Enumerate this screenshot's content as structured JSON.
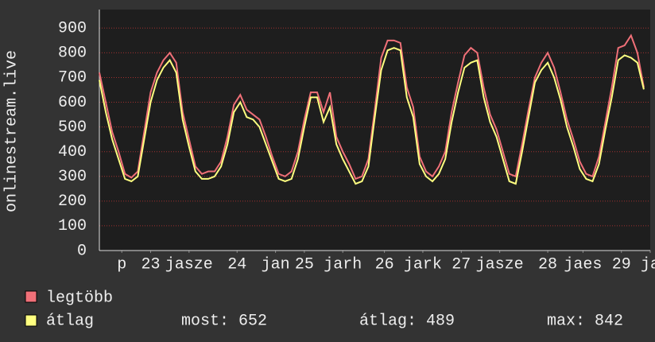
{
  "chart_data": {
    "type": "line",
    "y_label": "onlinestream.live",
    "x": [
      0,
      2,
      4,
      6,
      8,
      10,
      12,
      14,
      16,
      18,
      20,
      22,
      24,
      26,
      28,
      30,
      32,
      34,
      36,
      38,
      40,
      42,
      44,
      46,
      48,
      50,
      52,
      54,
      56,
      58,
      60,
      62,
      64,
      66,
      68,
      70,
      72,
      74,
      76,
      78,
      80,
      82,
      84,
      86,
      88,
      90,
      92,
      94,
      96,
      98,
      100,
      102,
      104,
      106,
      108,
      110,
      112,
      114,
      116,
      118,
      120,
      122,
      124,
      126,
      128,
      130,
      132,
      134,
      136,
      138,
      140,
      142,
      144,
      146,
      148,
      150,
      152,
      154,
      156,
      158,
      160,
      162,
      164,
      166,
      168,
      170
    ],
    "xlim": [
      0,
      172
    ],
    "xticks": [
      {
        "value": 7,
        "label": "p"
      },
      {
        "value": 16,
        "label": "23"
      },
      {
        "value": 28,
        "label": "jasze"
      },
      {
        "value": 43,
        "label": "24"
      },
      {
        "value": 55,
        "label": "jan"
      },
      {
        "value": 64,
        "label": "25"
      },
      {
        "value": 76,
        "label": "jarh"
      },
      {
        "value": 89,
        "label": "26"
      },
      {
        "value": 101,
        "label": "jark"
      },
      {
        "value": 113,
        "label": "27"
      },
      {
        "value": 125,
        "label": "jasze"
      },
      {
        "value": 140,
        "label": "28"
      },
      {
        "value": 151,
        "label": "jaes"
      },
      {
        "value": 163,
        "label": "29"
      },
      {
        "value": 172,
        "label": "ja"
      }
    ],
    "ylim": [
      0,
      975
    ],
    "yticks": [
      0,
      100,
      200,
      300,
      400,
      500,
      600,
      700,
      800,
      900
    ],
    "grid": true,
    "series": [
      {
        "name": "legtöbb",
        "color": "#f07078",
        "values": [
          720,
          600,
          480,
          400,
          310,
          295,
          320,
          480,
          640,
          720,
          770,
          800,
          760,
          560,
          450,
          340,
          310,
          320,
          320,
          360,
          460,
          590,
          630,
          570,
          550,
          530,
          460,
          380,
          310,
          300,
          320,
          400,
          530,
          640,
          640,
          560,
          640,
          460,
          400,
          350,
          290,
          300,
          370,
          570,
          780,
          850,
          850,
          840,
          660,
          580,
          380,
          320,
          300,
          340,
          400,
          560,
          680,
          790,
          820,
          800,
          660,
          550,
          490,
          400,
          310,
          300,
          430,
          570,
          700,
          760,
          800,
          740,
          640,
          530,
          450,
          360,
          310,
          300,
          380,
          520,
          660,
          820,
          830,
          870,
          800,
          660
        ]
      },
      {
        "name": "átlag",
        "color": "#ffff80",
        "values": [
          690,
          560,
          450,
          370,
          290,
          280,
          300,
          450,
          600,
          690,
          740,
          770,
          720,
          530,
          420,
          320,
          290,
          290,
          300,
          340,
          430,
          560,
          600,
          540,
          530,
          500,
          430,
          360,
          290,
          280,
          290,
          370,
          500,
          620,
          620,
          520,
          580,
          430,
          370,
          320,
          270,
          280,
          340,
          540,
          730,
          810,
          820,
          810,
          620,
          540,
          350,
          300,
          280,
          310,
          370,
          520,
          640,
          740,
          760,
          770,
          620,
          520,
          460,
          370,
          280,
          270,
          400,
          540,
          680,
          730,
          760,
          700,
          610,
          500,
          420,
          330,
          290,
          280,
          350,
          490,
          620,
          770,
          790,
          780,
          760,
          652
        ]
      }
    ],
    "legend": {
      "most": "most: 652",
      "atlag": "átlag: 489",
      "max": "max: 842"
    }
  }
}
